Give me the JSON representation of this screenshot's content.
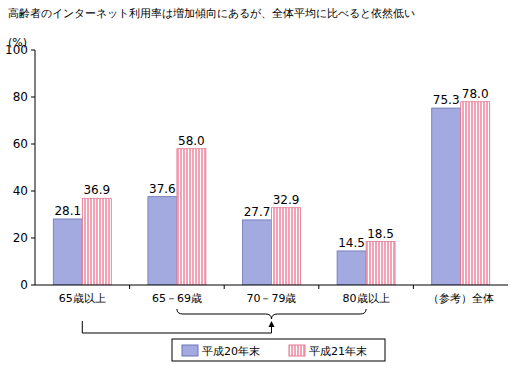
{
  "chart_data": {
    "type": "bar",
    "title": "高齢者のインターネット利用率は増加傾向にあるが、全体平均に比べると依然低い",
    "y_label": "(%)",
    "categories": [
      "65歳以上",
      "65－69歳",
      "70－79歳",
      "80歳以上",
      "（参考）全体"
    ],
    "series": [
      {
        "name": "平成20年末",
        "color": "#a3aadf",
        "values": [
          28.1,
          37.6,
          27.7,
          14.5,
          75.3
        ],
        "value_labels": [
          "28.1",
          "37.6",
          "27.7",
          "14.5",
          "75.3"
        ]
      },
      {
        "name": "平成21年末",
        "color": "#f4a3b6",
        "values": [
          36.9,
          58.0,
          32.9,
          18.5,
          78.0
        ],
        "value_labels": [
          "36.9",
          "58.0",
          "32.9",
          "18.5",
          "78.0"
        ]
      }
    ],
    "ylim": [
      0,
      100
    ],
    "yticks": [
      0,
      20,
      40,
      60,
      80,
      100
    ],
    "grid": false,
    "legend": "bottom",
    "data_labels": true
  }
}
